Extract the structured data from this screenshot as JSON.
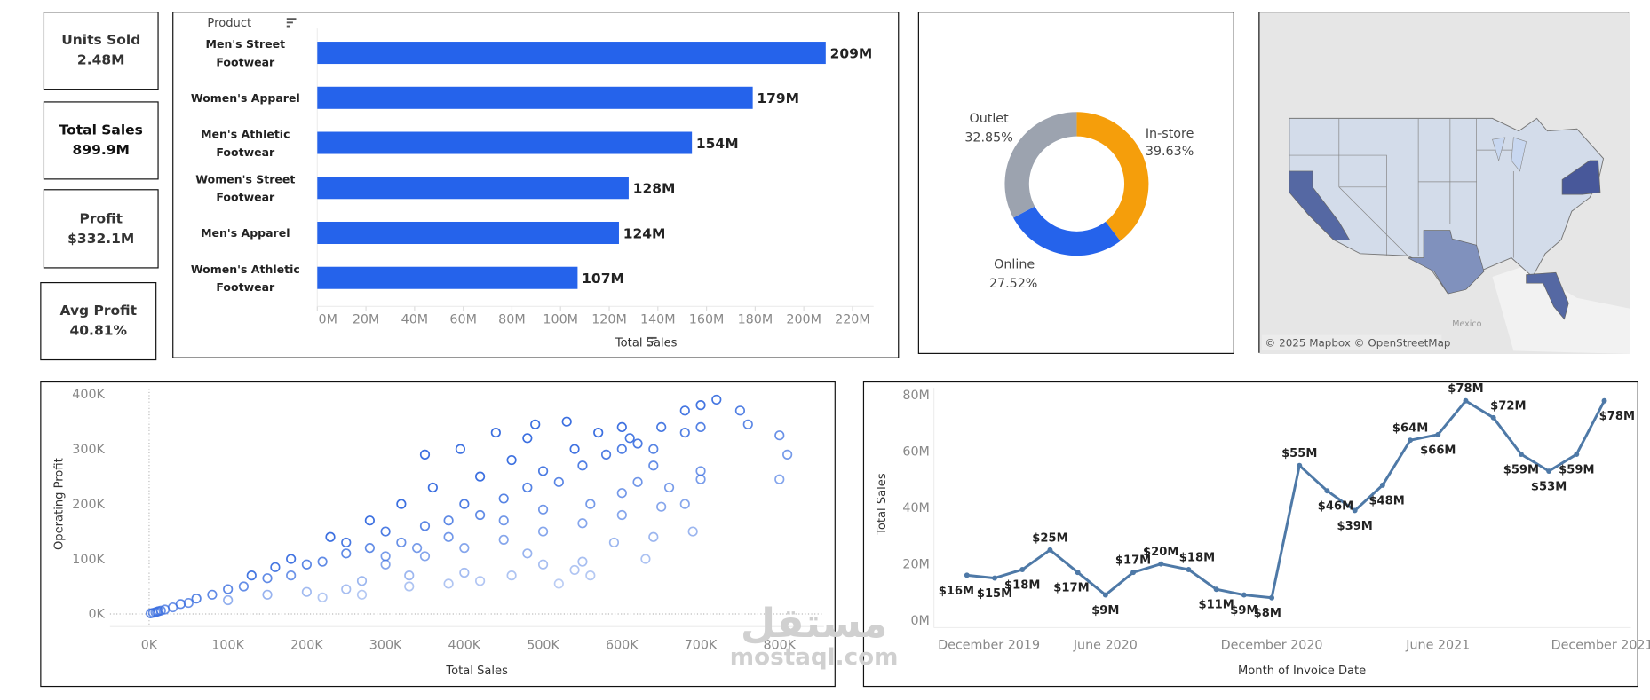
{
  "kpis": [
    {
      "label": "Units Sold",
      "value": "2.48M"
    },
    {
      "label": "Total Sales",
      "value": "899.9M"
    },
    {
      "label": "Profit",
      "value": "$332.1M"
    },
    {
      "label": "Avg Profit",
      "value": "40.81%"
    }
  ],
  "colors": {
    "bar": "#2563eb",
    "in_store": "#f59e0b",
    "online": "#2563eb",
    "outlet": "#9ca3af",
    "line": "#4e79a7",
    "scatter": "#3b6fe0"
  },
  "chart_data": [
    {
      "type": "bar",
      "orientation": "horizontal",
      "row_header": "Product",
      "sort_icon": "sort-descending-icon",
      "categories": [
        [
          "Men's Street",
          "Footwear"
        ],
        [
          "Women's Apparel"
        ],
        [
          "Men's Athletic",
          "Footwear"
        ],
        [
          "Women's Street",
          "Footwear"
        ],
        [
          "Men's Apparel"
        ],
        [
          "Women's Athletic",
          "Footwear"
        ]
      ],
      "values": [
        209,
        179,
        154,
        128,
        124,
        107
      ],
      "data_labels": [
        "209M",
        "179M",
        "154M",
        "128M",
        "124M",
        "107M"
      ],
      "xlabel": "Total Sales",
      "xlim": [
        0,
        220
      ],
      "x_ticks": [
        "0M",
        "20M",
        "40M",
        "60M",
        "80M",
        "100M",
        "120M",
        "140M",
        "160M",
        "180M",
        "200M",
        "220M"
      ]
    },
    {
      "type": "pie",
      "donut": true,
      "slices": [
        {
          "label": "In-store",
          "value": 39.63,
          "display": "39.63%"
        },
        {
          "label": "Online",
          "value": 27.52,
          "display": "27.52%"
        },
        {
          "label": "Outlet",
          "value": 32.85,
          "display": "32.85%"
        }
      ]
    },
    {
      "type": "map",
      "region": "United States",
      "highlighted_states": [
        "California",
        "Texas",
        "Florida",
        "New York"
      ],
      "labels": [
        "Mexico"
      ],
      "attribution": "© 2025 Mapbox © OpenStreetMap"
    },
    {
      "type": "scatter",
      "xlabel": "Total Sales",
      "ylabel": "Operating Profit",
      "xlim": [
        0,
        800000
      ],
      "ylim": [
        0,
        400000
      ],
      "x_ticks": [
        "0K",
        "100K",
        "200K",
        "300K",
        "400K",
        "500K",
        "600K",
        "700K",
        "800K"
      ],
      "y_ticks": [
        "0K",
        "100K",
        "200K",
        "300K",
        "400K"
      ],
      "points_k": [
        [
          2,
          1
        ],
        [
          5,
          2
        ],
        [
          8,
          3
        ],
        [
          10,
          4
        ],
        [
          12,
          5
        ],
        [
          15,
          6
        ],
        [
          20,
          8
        ],
        [
          30,
          12
        ],
        [
          50,
          20
        ],
        [
          80,
          35
        ],
        [
          100,
          45
        ],
        [
          120,
          50
        ],
        [
          150,
          65
        ],
        [
          180,
          70
        ],
        [
          200,
          90
        ],
        [
          220,
          95
        ],
        [
          250,
          110
        ],
        [
          280,
          120
        ],
        [
          300,
          150
        ],
        [
          320,
          130
        ],
        [
          350,
          160
        ],
        [
          380,
          170
        ],
        [
          400,
          200
        ],
        [
          420,
          180
        ],
        [
          450,
          210
        ],
        [
          480,
          230
        ],
        [
          500,
          260
        ],
        [
          520,
          240
        ],
        [
          550,
          270
        ],
        [
          580,
          290
        ],
        [
          600,
          300
        ],
        [
          620,
          310
        ],
        [
          650,
          340
        ],
        [
          680,
          370
        ],
        [
          700,
          380
        ],
        [
          720,
          390
        ],
        [
          750,
          370
        ],
        [
          800,
          325
        ],
        [
          810,
          290
        ],
        [
          800,
          245
        ],
        [
          300,
          90
        ],
        [
          350,
          105
        ],
        [
          400,
          120
        ],
        [
          450,
          135
        ],
        [
          500,
          150
        ],
        [
          550,
          165
        ],
        [
          600,
          180
        ],
        [
          650,
          195
        ],
        [
          270,
          60
        ],
        [
          330,
          70
        ],
        [
          400,
          75
        ],
        [
          480,
          110
        ],
        [
          550,
          95
        ],
        [
          250,
          45
        ],
        [
          200,
          40
        ],
        [
          150,
          35
        ],
        [
          100,
          25
        ],
        [
          420,
          60
        ],
        [
          520,
          55
        ],
        [
          560,
          70
        ],
        [
          640,
          140
        ],
        [
          690,
          150
        ],
        [
          700,
          260
        ],
        [
          760,
          345
        ],
        [
          600,
          220
        ],
        [
          640,
          270
        ],
        [
          480,
          320
        ],
        [
          530,
          350
        ],
        [
          440,
          330
        ],
        [
          395,
          300
        ],
        [
          350,
          290
        ],
        [
          490,
          345
        ],
        [
          600,
          340
        ],
        [
          610,
          320
        ],
        [
          250,
          130
        ],
        [
          230,
          140
        ],
        [
          180,
          100
        ],
        [
          160,
          85
        ],
        [
          130,
          70
        ],
        [
          60,
          28
        ],
        [
          40,
          18
        ],
        [
          360,
          230
        ],
        [
          320,
          200
        ],
        [
          280,
          170
        ],
        [
          420,
          250
        ],
        [
          460,
          280
        ],
        [
          540,
          300
        ],
        [
          570,
          330
        ],
        [
          640,
          300
        ],
        [
          680,
          330
        ],
        [
          700,
          340
        ],
        [
          560,
          200
        ],
        [
          500,
          190
        ],
        [
          450,
          170
        ],
        [
          380,
          140
        ],
        [
          340,
          120
        ],
        [
          300,
          105
        ],
        [
          620,
          240
        ],
        [
          660,
          230
        ],
        [
          700,
          245
        ],
        [
          680,
          200
        ],
        [
          590,
          130
        ],
        [
          630,
          100
        ],
        [
          540,
          80
        ],
        [
          500,
          90
        ],
        [
          460,
          70
        ],
        [
          380,
          55
        ],
        [
          330,
          50
        ],
        [
          270,
          35
        ],
        [
          220,
          30
        ]
      ]
    },
    {
      "type": "line",
      "xlabel": "Month of Invoice Date",
      "ylabel": "Total Sales",
      "ylim": [
        0,
        80
      ],
      "y_ticks": [
        "0M",
        "20M",
        "40M",
        "60M",
        "80M"
      ],
      "x_ticks": [
        "December 2019",
        "June 2020",
        "December 2020",
        "June 2021",
        "December 2021"
      ],
      "x": [
        "2020-01",
        "2020-02",
        "2020-03",
        "2020-04",
        "2020-05",
        "2020-06",
        "2020-07",
        "2020-08",
        "2020-09",
        "2020-10",
        "2020-11",
        "2020-12",
        "2021-01",
        "2021-02",
        "2021-03",
        "2021-04",
        "2021-05",
        "2021-06",
        "2021-07",
        "2021-08",
        "2021-09",
        "2021-10",
        "2021-11",
        "2021-12"
      ],
      "values": [
        16,
        15,
        18,
        25,
        17,
        9,
        17,
        20,
        18,
        11,
        9,
        8,
        55,
        46,
        39,
        48,
        64,
        66,
        78,
        72,
        59,
        53,
        59,
        78
      ],
      "data_labels": [
        "$16M",
        "$15M",
        "$18M",
        "$25M",
        "$17M",
        "$9M",
        "$17M",
        "$20M",
        "$18M",
        "$11M",
        "$9M",
        "$8M",
        "$55M",
        "$46M",
        "$39M",
        "$48M",
        "$64M",
        "$66M",
        "$78M",
        "$72M",
        "$59M",
        "$53M",
        "$59M",
        "$78M"
      ]
    }
  ],
  "watermark": {
    "arabic": "مستقل",
    "latin": "mostaql.com"
  }
}
